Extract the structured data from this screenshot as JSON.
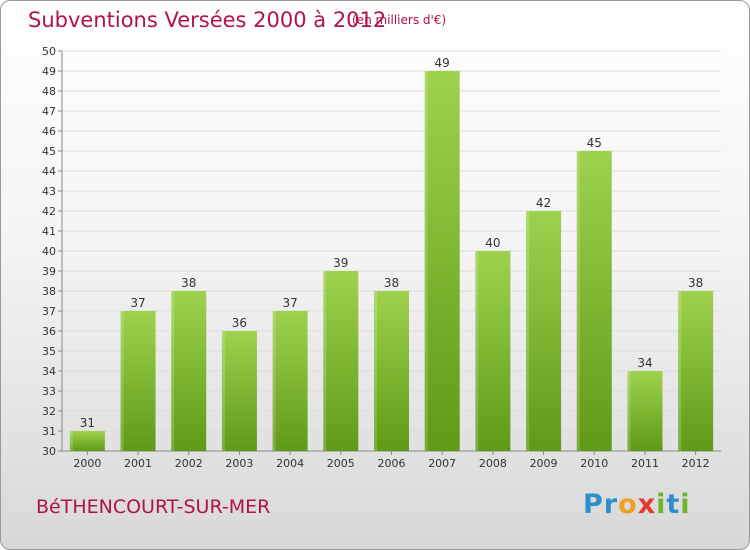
{
  "header": {
    "title": "Subventions Versées 2000 à 2012",
    "unit": "(en milliers d'€)"
  },
  "footer": {
    "town": "BéTHENCOURT-SUR-MER",
    "logo_text": "Proxiti"
  },
  "colors": {
    "bar_light": "#9ed24e",
    "bar_dark": "#5f9a17",
    "accent": "#b2124a"
  },
  "chart_data": {
    "type": "bar",
    "categories": [
      "2000",
      "2001",
      "2002",
      "2003",
      "2004",
      "2005",
      "2006",
      "2007",
      "2008",
      "2009",
      "2010",
      "2011",
      "2012"
    ],
    "values": [
      31,
      37,
      38,
      36,
      37,
      39,
      38,
      49,
      40,
      42,
      45,
      34,
      38
    ],
    "title": "Subventions Versées 2000 à 2012",
    "xlabel": "",
    "ylabel": "",
    "ylim": [
      30,
      50
    ],
    "yticks": [
      30,
      31,
      32,
      33,
      34,
      35,
      36,
      37,
      38,
      39,
      40,
      41,
      42,
      43,
      44,
      45,
      46,
      47,
      48,
      49,
      50
    ],
    "grid": true,
    "data_labels": true
  }
}
